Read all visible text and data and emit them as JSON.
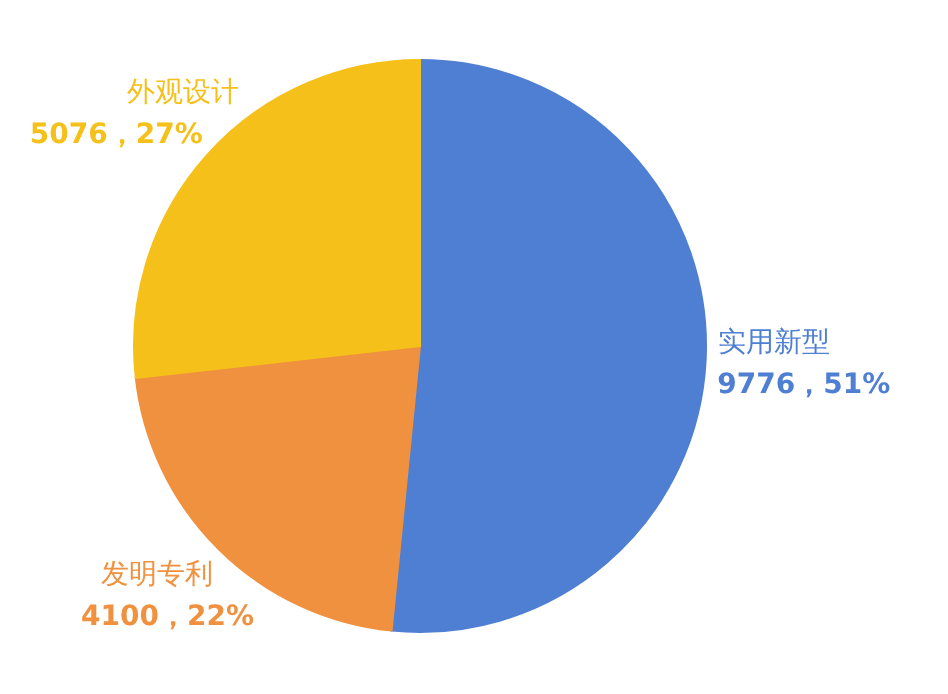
{
  "chart_data": {
    "type": "pie",
    "categories": [
      "实用新型",
      "发明专利",
      "外观设计"
    ],
    "values": [
      9776,
      4100,
      5076
    ],
    "value_labels": [
      "9776，51%",
      "4100，22%",
      "5076，27%"
    ],
    "colors": [
      "#4f7fd2",
      "#f0913f",
      "#f5c01a"
    ],
    "legend": false
  }
}
